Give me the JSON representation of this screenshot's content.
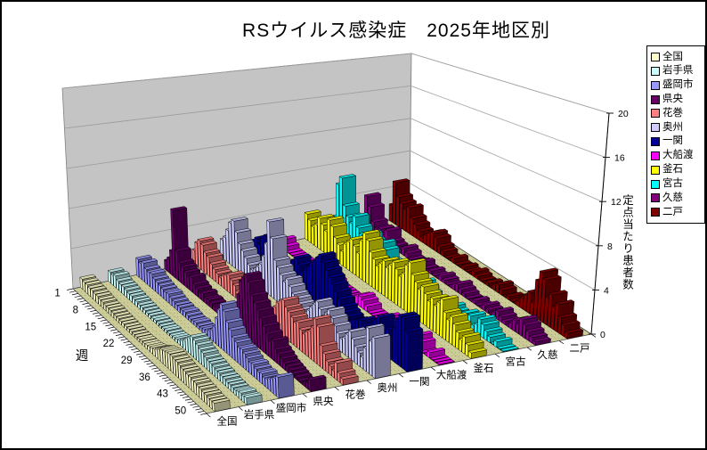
{
  "title": "RSウイルス感染症　2025年地区別",
  "axes": {
    "week_axis": {
      "title": "週",
      "tick_labels": [
        1,
        8,
        15,
        22,
        29,
        36,
        43,
        50
      ],
      "range": [
        1,
        52
      ]
    },
    "value_axis": {
      "title": "定点当たり患者数",
      "tick_labels": [
        0,
        4,
        8,
        12,
        16,
        20
      ],
      "range": [
        0,
        20
      ]
    },
    "series_axis": {
      "labels": [
        "全国",
        "岩手県",
        "盛岡市",
        "県央",
        "花巻",
        "奥州",
        "一関",
        "大船渡",
        "釜石",
        "宮古",
        "久慈",
        "二戸"
      ]
    }
  },
  "legend": {
    "position": "right"
  },
  "colors": {
    "floor": "#CCCC99",
    "floor_dot": "#AAAA66",
    "left_wall": "#C4C4C4",
    "left_wall_grid": "#9A9A9A",
    "right_wall": "#FFFFFF",
    "right_wall_grid": "#AAAAAA",
    "axis_line": "#000000",
    "background": "#FFFFFF",
    "frame_border": "#000000"
  },
  "chart_data": {
    "type": "bar",
    "projection": "3d-perspective",
    "title": "RSウイルス感染症　2025年地区別",
    "xlabel": "週",
    "ylabel": "定点当たり患者数",
    "ylim": [
      0,
      20
    ],
    "grid": true,
    "legend_position": "right",
    "weeks": [
      1,
      2,
      3,
      4,
      5,
      6,
      7,
      8,
      9,
      10,
      11,
      12,
      13,
      14,
      15,
      16,
      17,
      18,
      19,
      20,
      21,
      22,
      23,
      24,
      25,
      26,
      27,
      28,
      29,
      30,
      31,
      32,
      33,
      34,
      35,
      36,
      37,
      38,
      39,
      40,
      41,
      42,
      43,
      44,
      45,
      46,
      47,
      48,
      49,
      50,
      51,
      52
    ],
    "series": [
      {
        "name": "全国",
        "color": "#FFFFCC",
        "values": [
          1.0,
          0.9,
          0.9,
          0.8,
          0.8,
          0.7,
          0.7,
          0.6,
          0.6,
          0.5,
          0.5,
          0.5,
          0.45,
          0.4,
          0.4,
          0.35,
          0.35,
          0.3,
          0.3,
          0.3,
          0.25,
          0.25,
          0.25,
          0.3,
          0.3,
          0.35,
          0.4,
          0.5,
          0.6,
          0.8,
          1.0,
          1.2,
          1.3,
          1.4,
          1.5,
          1.5,
          1.4,
          1.4,
          1.3,
          1.2,
          1.2,
          1.1,
          1.1,
          1.0,
          1.0,
          0.9,
          0.9,
          0.8,
          0.8,
          0.7,
          0.7,
          0.7
        ]
      },
      {
        "name": "岩手県",
        "color": "#CCFFFF",
        "values": [
          1.1,
          1.0,
          1.2,
          0.9,
          0.8,
          0.8,
          0.7,
          0.6,
          0.6,
          0.5,
          0.5,
          0.4,
          0.4,
          0.35,
          0.3,
          0.3,
          0.25,
          0.3,
          0.25,
          0.2,
          0.2,
          0.25,
          0.2,
          0.2,
          0.25,
          0.3,
          0.4,
          0.6,
          0.8,
          1.2,
          1.5,
          1.8,
          1.7,
          1.5,
          1.3,
          1.2,
          1.0,
          0.9,
          0.9,
          0.8,
          0.7,
          0.7,
          0.6,
          0.6,
          0.5,
          0.5,
          0.45,
          0.4,
          0.5,
          0.6,
          0.5,
          0.6
        ]
      },
      {
        "name": "盛岡市",
        "color": "#9999FF",
        "values": [
          1.8,
          1.6,
          1.9,
          1.5,
          1.4,
          1.5,
          1.2,
          1.1,
          1.0,
          0.9,
          0.8,
          0.9,
          0.7,
          0.6,
          0.5,
          0.5,
          0.4,
          0.5,
          0.4,
          0.3,
          0.3,
          0.4,
          0.3,
          0.3,
          0.4,
          0.5,
          0.7,
          1.0,
          1.5,
          2.5,
          3.5,
          4.2,
          3.8,
          3.0,
          2.5,
          2.0,
          1.8,
          1.5,
          1.6,
          1.4,
          1.2,
          1.0,
          1.1,
          0.9,
          0.8,
          0.9,
          0.7,
          0.8,
          1.0,
          1.2,
          1.5,
          1.8
        ]
      },
      {
        "name": "県央",
        "color": "#660066",
        "values": [
          1.0,
          1.5,
          2.5,
          7.0,
          3.0,
          2.0,
          1.8,
          1.5,
          1.2,
          1.5,
          1.0,
          0.8,
          0.6,
          0.8,
          0.5,
          0.6,
          0.5,
          0.4,
          0.5,
          0.6,
          0.5,
          0.6,
          0.8,
          1.0,
          1.5,
          2.5,
          3.5,
          5.0,
          5.5,
          6.0,
          5.5,
          4.5,
          4.0,
          3.5,
          3.0,
          2.5,
          2.0,
          1.5,
          1.8,
          1.2,
          1.0,
          0.8,
          0.6,
          0.5,
          0.4,
          0.3,
          0.2,
          0.0,
          0.0,
          0.3,
          0.5,
          1.0
        ]
      },
      {
        "name": "花巻",
        "color": "#FF8080",
        "values": [
          1.5,
          2.5,
          3.0,
          2.8,
          2.2,
          2.0,
          1.5,
          1.2,
          1.0,
          0.8,
          1.2,
          1.5,
          1.8,
          1.5,
          1.2,
          0.8,
          0.6,
          0.5,
          0.8,
          1.0,
          0.6,
          0.5,
          0.4,
          0.5,
          0.6,
          0.8,
          1.2,
          1.8,
          2.2,
          2.8,
          3.2,
          3.5,
          3.0,
          2.8,
          2.5,
          2.2,
          2.5,
          2.0,
          1.8,
          2.2,
          2.5,
          3.0,
          4.0,
          3.5,
          2.0,
          1.5,
          1.0,
          0.8,
          0.6,
          1.5,
          0.8,
          0.5
        ]
      },
      {
        "name": "奥州",
        "color": "#CCCCFF",
        "values": [
          2.0,
          2.5,
          3.5,
          4.5,
          5.0,
          4.0,
          3.0,
          2.5,
          2.0,
          1.5,
          1.2,
          1.5,
          2.0,
          2.5,
          3.5,
          5.0,
          7.5,
          6.0,
          4.0,
          3.5,
          3.0,
          2.5,
          3.0,
          2.5,
          2.0,
          1.8,
          1.5,
          1.2,
          1.0,
          1.5,
          2.0,
          2.5,
          3.0,
          2.5,
          2.0,
          2.5,
          3.0,
          2.5,
          2.0,
          1.5,
          1.2,
          1.5,
          2.0,
          2.5,
          2.0,
          1.5,
          1.2,
          1.0,
          2.0,
          4.0,
          3.0,
          3.5
        ]
      },
      {
        "name": "一関",
        "color": "#000099",
        "values": [
          1.0,
          1.5,
          2.0,
          1.5,
          2.5,
          3.0,
          2.0,
          1.5,
          1.2,
          1.0,
          0.8,
          1.0,
          1.5,
          2.0,
          2.5,
          3.0,
          2.5,
          2.0,
          2.5,
          3.0,
          3.5,
          4.0,
          4.5,
          5.0,
          4.5,
          4.0,
          3.5,
          3.0,
          2.5,
          2.0,
          1.5,
          1.2,
          1.0,
          0.8,
          1.0,
          1.2,
          1.5,
          1.2,
          1.0,
          1.5,
          2.0,
          2.5,
          3.0,
          1.5,
          2.0,
          2.5,
          2.0,
          3.0,
          4.0,
          4.5,
          4.5,
          3.5
        ]
      },
      {
        "name": "大船渡",
        "color": "#FF00FF",
        "values": [
          0.5,
          1.0,
          0.5,
          0,
          0,
          0,
          0,
          0,
          0,
          0,
          0,
          0.5,
          1.5,
          2.0,
          1.5,
          1.0,
          0.8,
          0.5,
          0,
          0,
          0,
          0,
          0,
          0,
          0.5,
          0.8,
          1.0,
          0.8,
          0.5,
          0,
          0,
          0,
          0,
          0.5,
          0.8,
          0.5,
          0,
          0,
          0,
          0,
          0,
          0.5,
          0,
          0,
          1.2,
          0.8,
          0,
          0,
          0.5,
          0,
          0,
          0
        ]
      },
      {
        "name": "釜石",
        "color": "#FFFF00",
        "values": [
          3.0,
          2.5,
          2.0,
          2.5,
          3.5,
          3.0,
          2.5,
          4.0,
          3.5,
          2.5,
          2.0,
          1.5,
          2.5,
          3.0,
          3.5,
          3.0,
          2.5,
          4.0,
          5.0,
          4.5,
          3.5,
          3.0,
          2.5,
          3.0,
          3.5,
          3.0,
          3.5,
          4.0,
          3.5,
          3.0,
          3.5,
          4.5,
          5.0,
          4.0,
          3.5,
          3.0,
          3.5,
          3.0,
          2.5,
          3.0,
          2.5,
          3.0,
          3.5,
          2.5,
          2.0,
          2.5,
          2.0,
          1.5,
          1.0,
          1.5,
          1.0,
          0.5
        ]
      },
      {
        "name": "宮古",
        "color": "#00FFFF",
        "values": [
          2.0,
          6.0,
          7.0,
          4.0,
          3.0,
          2.5,
          3.5,
          2.5,
          2.0,
          1.5,
          2.5,
          2.0,
          1.5,
          1.0,
          2.5,
          2.0,
          1.0,
          0.5,
          0,
          0,
          0.5,
          1.0,
          0.5,
          0,
          0,
          0.8,
          1.2,
          0.8,
          0.5,
          0,
          0,
          0.5,
          0,
          0,
          0.5,
          0.8,
          0.5,
          0,
          0.5,
          1.0,
          0.8,
          1.2,
          0.5,
          0.8,
          1.5,
          1.2,
          0.8,
          0.5,
          0,
          0.5,
          0,
          0
        ]
      },
      {
        "name": "久慈",
        "color": "#800080",
        "values": [
          1.5,
          4.0,
          3.0,
          1.5,
          1.0,
          1.2,
          0.8,
          1.5,
          0.5,
          0.3,
          0,
          0.5,
          0.8,
          0.5,
          0,
          0,
          0.3,
          0.5,
          0,
          0,
          0.3,
          0,
          0,
          0.5,
          0.3,
          0,
          0,
          0.5,
          0.8,
          0.5,
          0.3,
          0,
          0,
          0.3,
          0,
          0,
          0.5,
          0.3,
          0,
          0.5,
          0.8,
          0.5,
          0.3,
          0,
          0.5,
          1.0,
          0.8,
          1.5,
          1.2,
          0.8,
          0.5,
          0.3
        ]
      },
      {
        "name": "二戸",
        "color": "#800000",
        "values": [
          2.0,
          5.0,
          3.5,
          3.0,
          2.5,
          3.0,
          2.0,
          1.5,
          1.0,
          0.5,
          1.0,
          1.5,
          1.8,
          1.5,
          0.8,
          0.5,
          0,
          0,
          0.5,
          0,
          0,
          0.3,
          0,
          0,
          0.5,
          0.3,
          0,
          0,
          0.3,
          0,
          0.5,
          0.8,
          0.5,
          0,
          0.3,
          0,
          0,
          0.5,
          1.0,
          1.5,
          2.0,
          1.2,
          3.5,
          4.5,
          4.0,
          2.5,
          3.0,
          2.0,
          2.5,
          1.5,
          1.0,
          0.5
        ]
      }
    ]
  }
}
